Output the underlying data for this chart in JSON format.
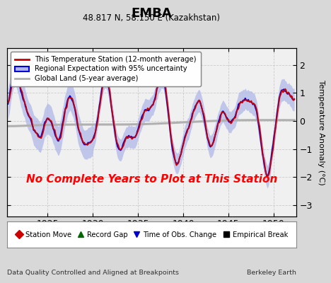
{
  "title": "EMBA",
  "subtitle": "48.817 N, 58.150 E (Kazakhstan)",
  "ylabel": "Temperature Anomaly (°C)",
  "footer_left": "Data Quality Controlled and Aligned at Breakpoints",
  "footer_right": "Berkeley Earth",
  "annotation": "No Complete Years to Plot at This Station",
  "annotation_color": "#ff0000",
  "xlim": [
    1920.5,
    1952.5
  ],
  "ylim": [
    -3.4,
    2.6
  ],
  "yticks": [
    -3,
    -2,
    -1,
    0,
    1,
    2
  ],
  "xticks": [
    1925,
    1930,
    1935,
    1940,
    1945,
    1950
  ],
  "bg_color": "#d8d8d8",
  "plot_bg_color": "#f0f0f0",
  "regional_line_color": "#0000dd",
  "regional_fill_color": "#b0b8e8",
  "station_line_color": "#cc0000",
  "global_land_color": "#b0b0b0",
  "legend1_entries": [
    {
      "label": "This Temperature Station (12-month average)",
      "color": "#cc0000"
    },
    {
      "label": "Regional Expectation with 95% uncertainty",
      "color": "#0000dd",
      "fill": "#b0b8e8"
    },
    {
      "label": "Global Land (5-year average)",
      "color": "#b0b0b0"
    }
  ],
  "legend2_entries": [
    {
      "label": "Station Move",
      "color": "#cc0000",
      "marker": "D"
    },
    {
      "label": "Record Gap",
      "color": "#006600",
      "marker": "^"
    },
    {
      "label": "Time of Obs. Change",
      "color": "#0000cc",
      "marker": "v"
    },
    {
      "label": "Empirical Break",
      "color": "#000000",
      "marker": "s"
    }
  ]
}
